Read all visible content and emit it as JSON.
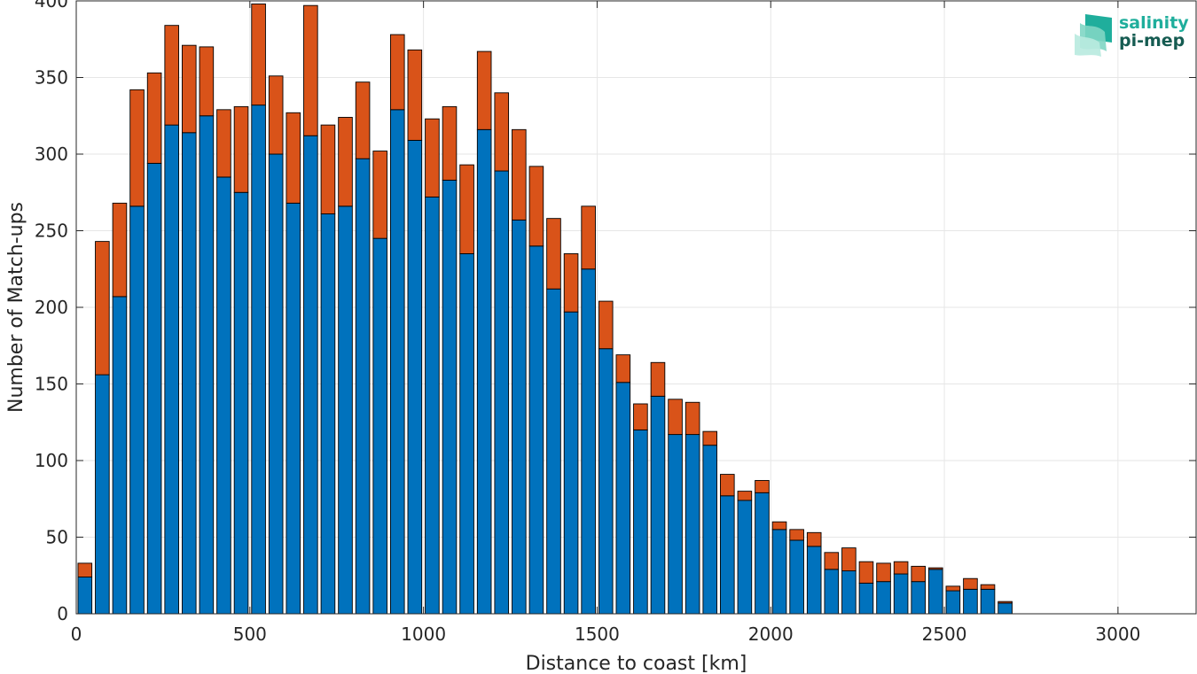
{
  "chart_data": {
    "type": "bar",
    "stacked": true,
    "xlabel": "Distance to coast [km]",
    "ylabel": "Number of Match-ups",
    "xlim": [
      0,
      3225
    ],
    "ylim": [
      0,
      400
    ],
    "xticks": [
      0,
      500,
      1000,
      1500,
      2000,
      2500,
      3000
    ],
    "yticks": [
      0,
      50,
      100,
      150,
      200,
      250,
      300,
      350,
      400
    ],
    "grid": true,
    "bin_width": 50,
    "x": [
      25,
      75,
      125,
      175,
      225,
      275,
      325,
      375,
      425,
      475,
      525,
      575,
      625,
      675,
      725,
      775,
      825,
      875,
      925,
      975,
      1025,
      1075,
      1125,
      1175,
      1225,
      1275,
      1325,
      1375,
      1425,
      1475,
      1525,
      1575,
      1625,
      1675,
      1725,
      1775,
      1825,
      1875,
      1925,
      1975,
      2025,
      2075,
      2125,
      2175,
      2225,
      2275,
      2325,
      2375,
      2425,
      2475,
      2525,
      2575,
      2625,
      2675
    ],
    "series": [
      {
        "color": "#0072bd",
        "values": [
          24,
          156,
          207,
          266,
          294,
          319,
          314,
          325,
          285,
          275,
          332,
          300,
          268,
          312,
          261,
          266,
          297,
          245,
          329,
          309,
          272,
          283,
          235,
          316,
          289,
          257,
          240,
          212,
          197,
          225,
          173,
          151,
          120,
          142,
          117,
          117,
          110,
          77,
          74,
          79,
          55,
          48,
          44,
          29,
          28,
          20,
          21,
          26,
          21,
          29,
          15,
          16,
          16,
          7
        ]
      },
      {
        "color": "#d95319",
        "values": [
          9,
          87,
          61,
          76,
          59,
          65,
          57,
          45,
          44,
          56,
          66,
          51,
          59,
          85,
          58,
          58,
          50,
          57,
          49,
          59,
          51,
          48,
          58,
          51,
          51,
          59,
          52,
          46,
          38,
          41,
          31,
          18,
          17,
          22,
          23,
          21,
          9,
          14,
          6,
          8,
          5,
          7,
          9,
          11,
          15,
          14,
          12,
          8,
          10,
          1,
          3,
          7,
          3,
          1
        ]
      }
    ]
  },
  "logo": {
    "line1": "salinity",
    "line2": "pi-mep"
  }
}
